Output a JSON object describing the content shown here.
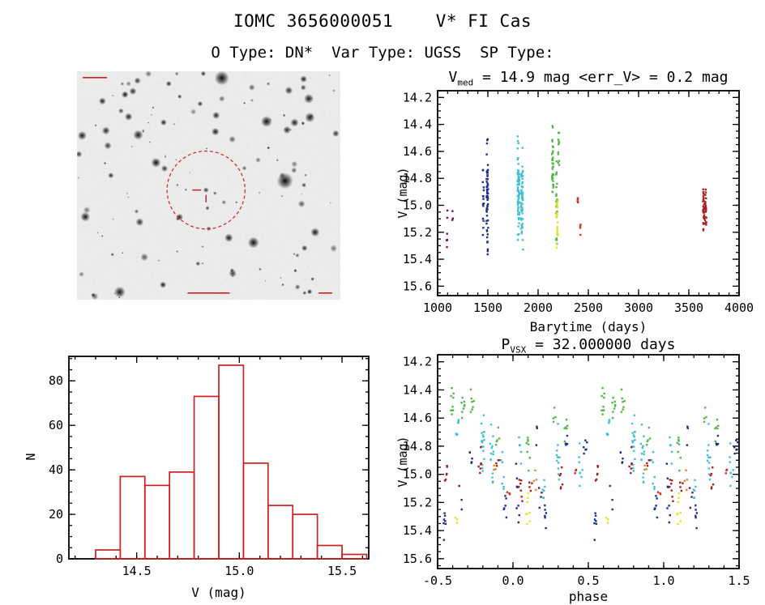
{
  "header": {
    "title": "IOMC 3656000051    V* FI Cas",
    "subtitle": "O Type: DN*  Var Type: UGSS  SP Type:"
  },
  "finder": {
    "circle_color": "#cc2222",
    "background": "#ebebeb"
  },
  "chart_data": [
    {
      "id": "lightcurve",
      "type": "scatter",
      "title_parts": {
        "base": "V",
        "sub": "med",
        "rest": " = 14.9 mag <err_V> = 0.2 mag"
      },
      "xlabel": "Barytime (days)",
      "ylabel": "V (mag)",
      "xlim": [
        1000,
        4000
      ],
      "ylim": [
        14.15,
        15.67
      ],
      "y_axis_direction": "magnitude-increases-downward",
      "xticks": [
        1000,
        1500,
        2000,
        2500,
        3000,
        3500,
        4000
      ],
      "xtick_labels": [
        "1000",
        "1500",
        "2000",
        "2500",
        "3000",
        "3500",
        "4000"
      ],
      "x_minor_step": 100,
      "yticks": [
        14.2,
        14.4,
        14.6,
        14.8,
        15.0,
        15.2,
        15.4,
        15.6
      ],
      "ytick_labels": [
        "14.2",
        "14.4",
        "14.6",
        "14.8",
        "15.0",
        "15.2",
        "15.4",
        "15.6"
      ],
      "y_minor_step": 0.05,
      "median_v_mag": 14.9,
      "err_v_mag": 0.2,
      "clusters": [
        {
          "x": 1095,
          "x_spread": 5,
          "y_min": 14.9,
          "y_max": 15.45,
          "n": 7,
          "color": "#6e1457"
        },
        {
          "x": 1150,
          "x_spread": 4,
          "y_min": 15.0,
          "y_max": 15.35,
          "n": 3,
          "color": "#6e1457"
        },
        {
          "x": 1455,
          "x_spread": 6,
          "y_min": 14.6,
          "y_max": 15.35,
          "n": 15,
          "color": "#1a2f8f"
        },
        {
          "x": 1495,
          "x_spread": 8,
          "y_min": 14.45,
          "y_max": 15.42,
          "n": 60,
          "color": "#1a2f8f"
        },
        {
          "x": 1805,
          "x_spread": 10,
          "y_min": 14.45,
          "y_max": 15.3,
          "n": 65,
          "color": "#3fc1d1"
        },
        {
          "x": 1840,
          "x_spread": 10,
          "y_min": 14.55,
          "y_max": 15.35,
          "n": 55,
          "color": "#3fc1d1"
        },
        {
          "x": 2145,
          "x_spread": 7,
          "y_min": 14.35,
          "y_max": 15.05,
          "n": 35,
          "color": "#56b54a"
        },
        {
          "x": 2185,
          "x_spread": 6,
          "y_min": 14.6,
          "y_max": 15.35,
          "n": 25,
          "color": "#56b54a"
        },
        {
          "x": 2205,
          "x_spread": 5,
          "y_min": 14.4,
          "y_max": 14.75,
          "n": 12,
          "color": "#56b54a"
        },
        {
          "x": 2190,
          "x_spread": 6,
          "y_min": 14.85,
          "y_max": 15.4,
          "n": 22,
          "color": "#e8df1f"
        },
        {
          "x": 2395,
          "x_spread": 3,
          "y_min": 14.88,
          "y_max": 15.02,
          "n": 5,
          "color": "#cc3322"
        },
        {
          "x": 2420,
          "x_spread": 3,
          "y_min": 15.08,
          "y_max": 15.26,
          "n": 4,
          "color": "#cc3322"
        },
        {
          "x": 3648,
          "x_spread": 7,
          "y_min": 14.8,
          "y_max": 15.2,
          "n": 28,
          "color": "#a81e1e"
        },
        {
          "x": 3668,
          "x_spread": 6,
          "y_min": 14.82,
          "y_max": 15.18,
          "n": 24,
          "color": "#a81e1e"
        }
      ]
    },
    {
      "id": "histogram",
      "type": "bar",
      "xlabel": "V (mag)",
      "ylabel": "N",
      "bar_color": "#cc2222",
      "bin_start": 14.3,
      "bin_width": 0.12,
      "values": [
        4,
        37,
        33,
        39,
        73,
        87,
        43,
        24,
        20,
        6,
        2
      ],
      "xlim": [
        14.17,
        15.63
      ],
      "ylim": [
        0,
        91
      ],
      "xticks": [
        14.5,
        15.0,
        15.5
      ],
      "xtick_labels": [
        "14.5",
        "15.0",
        "15.5"
      ],
      "x_minor_step": 0.1,
      "yticks": [
        0,
        20,
        40,
        60,
        80
      ],
      "ytick_labels": [
        "0",
        "20",
        "40",
        "60",
        "80"
      ],
      "y_minor_step": 5
    },
    {
      "id": "phase-plot",
      "type": "scatter",
      "title_parts": {
        "base": "P",
        "sub": "VSX",
        "rest": " = 32.000000 days"
      },
      "period_days": 32.0,
      "xlabel": "phase",
      "ylabel": "V (mag)",
      "xlim": [
        -0.5,
        1.5
      ],
      "ylim": [
        14.15,
        15.67
      ],
      "y_axis_direction": "magnitude-increases-downward",
      "xticks": [
        -0.5,
        0.0,
        0.5,
        1.0,
        1.5
      ],
      "xtick_labels": [
        "-0.5",
        "0.0",
        "0.5",
        "1.0",
        "1.5"
      ],
      "x_minor_step": 0.1,
      "yticks": [
        14.2,
        14.4,
        14.6,
        14.8,
        15.0,
        15.2,
        15.4,
        15.6
      ],
      "ytick_labels": [
        "14.2",
        "14.4",
        "14.6",
        "14.8",
        "15.0",
        "15.2",
        "15.4",
        "15.6"
      ],
      "y_minor_step": 0.05,
      "duplicate_phase_period": 1.0,
      "groups": [
        {
          "color": "#56b54a",
          "strips": [
            {
              "x": 0.6,
              "y_min": 14.35,
              "y_max": 14.65,
              "n": 9
            },
            {
              "x": 0.67,
              "y_min": 14.4,
              "y_max": 14.7,
              "n": 8
            },
            {
              "x": 0.73,
              "y_min": 14.35,
              "y_max": 14.6,
              "n": 7
            },
            {
              "x": 0.1,
              "y_min": 14.55,
              "y_max": 15.0,
              "n": 8
            },
            {
              "x": 0.35,
              "y_min": 14.5,
              "y_max": 14.85,
              "n": 6
            },
            {
              "x": 0.9,
              "y_min": 14.55,
              "y_max": 14.9,
              "n": 5
            },
            {
              "x": 0.28,
              "y_min": 14.45,
              "y_max": 14.7,
              "n": 4
            }
          ]
        },
        {
          "color": "#3fc1d1",
          "strips": [
            {
              "x": 0.8,
              "y_min": 14.55,
              "y_max": 15.05,
              "n": 18
            },
            {
              "x": 0.86,
              "y_min": 14.6,
              "y_max": 15.1,
              "n": 14
            },
            {
              "x": 0.3,
              "y_min": 14.6,
              "y_max": 15.2,
              "n": 12
            },
            {
              "x": 0.45,
              "y_min": 14.75,
              "y_max": 15.1,
              "n": 8
            },
            {
              "x": 0.2,
              "y_min": 14.9,
              "y_max": 15.25,
              "n": 6
            },
            {
              "x": 0.63,
              "y_min": 14.5,
              "y_max": 14.8,
              "n": 6
            },
            {
              "x": 0.93,
              "y_min": 14.8,
              "y_max": 15.2,
              "n": 7
            },
            {
              "x": 0.05,
              "y_min": 14.7,
              "y_max": 14.95,
              "n": 5
            }
          ]
        },
        {
          "color": "#1a2f8f",
          "strips": [
            {
              "x": 0.03,
              "y_min": 14.9,
              "y_max": 15.45,
              "n": 8
            },
            {
              "x": 0.22,
              "y_min": 15.05,
              "y_max": 15.45,
              "n": 6
            },
            {
              "x": 0.48,
              "y_min": 14.6,
              "y_max": 15.0,
              "n": 6
            },
            {
              "x": 0.55,
              "y_min": 15.15,
              "y_max": 15.5,
              "n": 7
            },
            {
              "x": 0.72,
              "y_min": 14.75,
              "y_max": 15.1,
              "n": 5
            },
            {
              "x": 0.95,
              "y_min": 15.05,
              "y_max": 15.4,
              "n": 6
            },
            {
              "x": 0.35,
              "y_min": 14.65,
              "y_max": 14.95,
              "n": 4
            },
            {
              "x": 0.15,
              "y_min": 14.6,
              "y_max": 14.85,
              "n": 3
            }
          ]
        },
        {
          "color": "#a81e1e",
          "strips": [
            {
              "x": 0.05,
              "y_min": 14.85,
              "y_max": 15.2,
              "n": 7
            },
            {
              "x": 0.32,
              "y_min": 14.9,
              "y_max": 15.15,
              "n": 6
            },
            {
              "x": 0.56,
              "y_min": 14.85,
              "y_max": 15.1,
              "n": 6
            },
            {
              "x": 0.78,
              "y_min": 14.8,
              "y_max": 15.05,
              "n": 6
            },
            {
              "x": 0.12,
              "y_min": 15.0,
              "y_max": 15.2,
              "n": 4
            },
            {
              "x": 0.9,
              "y_min": 14.8,
              "y_max": 15.0,
              "n": 4
            }
          ]
        },
        {
          "color": "#6e1457",
          "strips": [
            {
              "x": 0.18,
              "y_min": 14.95,
              "y_max": 15.3,
              "n": 4
            },
            {
              "x": 0.65,
              "y_min": 15.0,
              "y_max": 15.35,
              "n": 3
            }
          ]
        },
        {
          "color": "#e8df1f",
          "strips": [
            {
              "x": 0.1,
              "y_min": 15.0,
              "y_max": 15.45,
              "n": 8
            },
            {
              "x": 0.62,
              "y_min": 15.2,
              "y_max": 15.4,
              "n": 3
            }
          ]
        },
        {
          "color": "#e78a1e",
          "strips": [
            {
              "x": 0.15,
              "y_min": 14.95,
              "y_max": 15.2,
              "n": 4
            },
            {
              "x": 0.88,
              "y_min": 14.9,
              "y_max": 15.05,
              "n": 3
            }
          ]
        },
        {
          "color": "#cc3322",
          "strips": [
            {
              "x": 0.42,
              "y_min": 14.9,
              "y_max": 15.05,
              "n": 3
            },
            {
              "x": 0.97,
              "y_min": 15.0,
              "y_max": 15.2,
              "n": 3
            }
          ]
        }
      ]
    }
  ]
}
